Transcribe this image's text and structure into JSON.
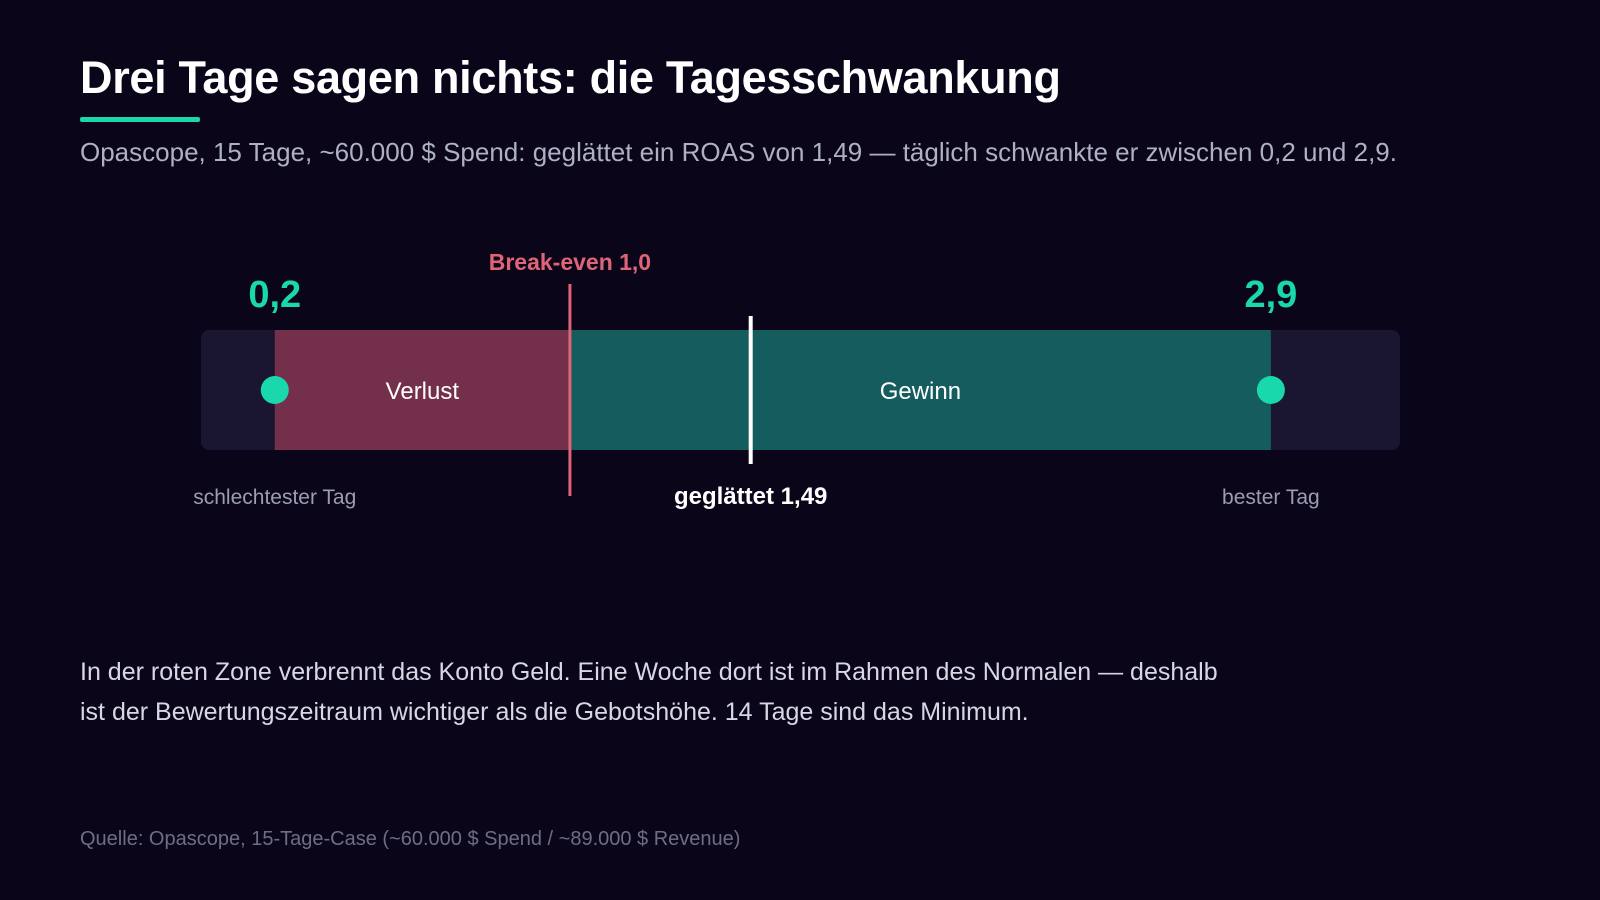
{
  "title": "Drei Tage sagen nichts: die Tagesschwankung",
  "subtitle": "Opascope, 15 Tage, ~60.000 $ Spend: geglättet ein ROAS von 1,49 — täglich schwankte er zwischen 0,2 und 2,9.",
  "body_text": "In der roten Zone verbrennt das Konto Geld. Eine Woche dort ist im Rahmen des Normalen — deshalb ist der Bewertungszeitraum wichtiger als die Gebotshöhe. 14 Tage sind das Minimum.",
  "source": "Quelle: Opascope, 15-Tage-Case (~60.000 $ Spend / ~89.000 $ Revenue)",
  "colors": {
    "accent": "#19d9ac",
    "loss_zone": "#74304b",
    "gain_zone": "#145c5e",
    "break_even": "#e06478",
    "track": "#1a1530",
    "smoothed": "#ffffff"
  },
  "chart_data": {
    "type": "range",
    "xlim": [
      0,
      3.25
    ],
    "min": {
      "value": 0.2,
      "value_label": "0,2",
      "caption": "schlechtester Tag"
    },
    "max": {
      "value": 2.9,
      "value_label": "2,9",
      "caption": "bester Tag"
    },
    "break_even": {
      "value": 1.0,
      "label": "Break-even 1,0"
    },
    "smoothed": {
      "value": 1.49,
      "label": "geglättet 1,49"
    },
    "zones": [
      {
        "name": "Verlust",
        "from": 0.2,
        "to": 1.0
      },
      {
        "name": "Gewinn",
        "from": 1.0,
        "to": 2.9
      }
    ]
  }
}
